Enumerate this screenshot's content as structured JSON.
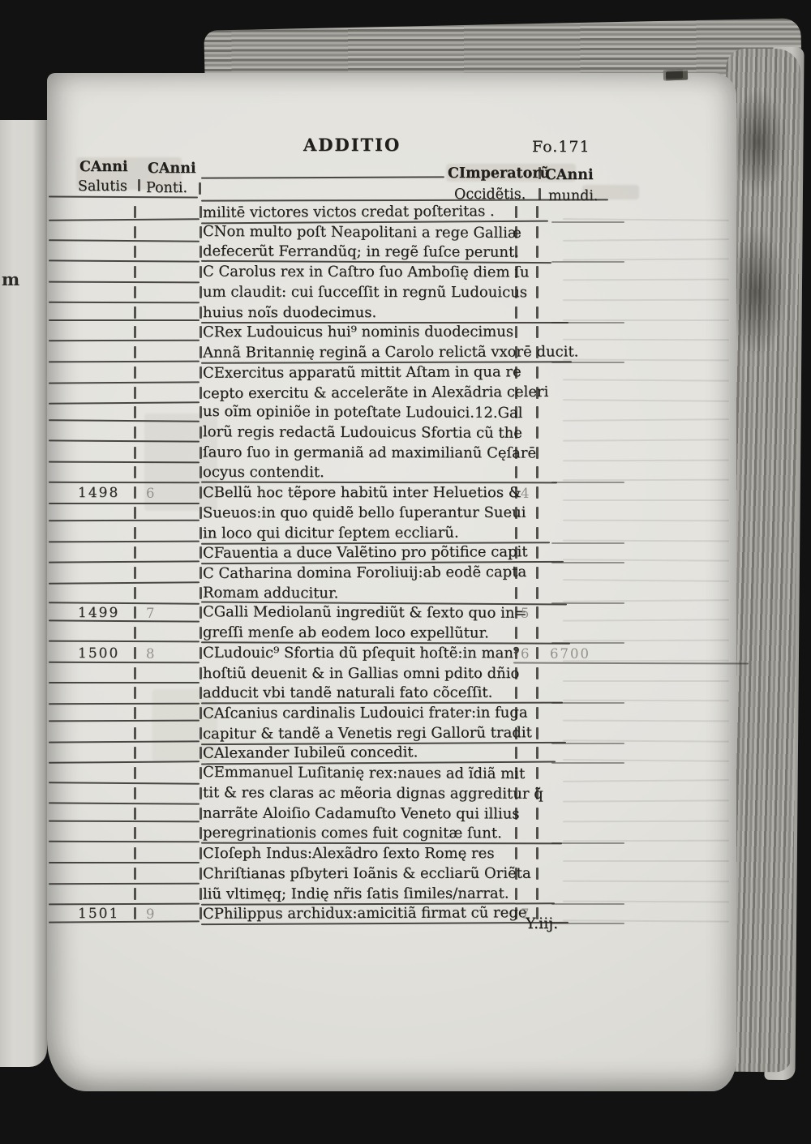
{
  "page": {
    "running_title": "ADDITIO",
    "folio": "Fo.171",
    "signature_mark": "Y.iij.",
    "marginal_letter": "m"
  },
  "table": {
    "headers": {
      "salutis_top": "CAnni",
      "salutis_bottom": "Salutis",
      "ponti_top": "CAnni",
      "ponti_bottom": "Ponti.",
      "imperator_top": "CImperatorũ",
      "imperator_bottom": "Occidẽtis.",
      "mundi_top": "CAnni",
      "mundi_bottom": "mundi."
    },
    "rows": [
      {
        "salutis": "",
        "ponti": "",
        "text": "militē victores victos credat poſteritas .",
        "imperator": "",
        "mundi": "",
        "para_end": true
      },
      {
        "salutis": "",
        "ponti": "",
        "text": "CNon multo poſt Neapolitani a rege Galliæ",
        "imperator": "",
        "mundi": "",
        "para_end": false
      },
      {
        "salutis": "",
        "ponti": "",
        "text": "defecerũt Ferrandũq; in regẽ ſuſce perunt.",
        "imperator": "",
        "mundi": "",
        "para_end": true
      },
      {
        "salutis": "",
        "ponti": "",
        "text": "C Carolus rex in Caſtro ſuo Amboſię diem ſu",
        "imperator": "",
        "mundi": "",
        "para_end": false
      },
      {
        "salutis": "",
        "ponti": "",
        "text": "um claudit: cui ſucceſſit in regnũ Ludouicus",
        "imperator": "",
        "mundi": "",
        "para_end": false
      },
      {
        "salutis": "",
        "ponti": "",
        "text": "huius noĩs duodecimus.",
        "imperator": "",
        "mundi": "",
        "para_end": true
      },
      {
        "salutis": "",
        "ponti": "",
        "text": "CRex Ludouicus hui⁹ nominis duodecimus",
        "imperator": "",
        "mundi": "",
        "para_end": false
      },
      {
        "salutis": "",
        "ponti": "",
        "text": "Annã Britannię reginã a Carolo relictã vxorē ducit.",
        "imperator": "",
        "mundi": "",
        "para_end": true
      },
      {
        "salutis": "",
        "ponti": "",
        "text": "CExercitus apparatũ mittit Aſtam in qua re",
        "imperator": "",
        "mundi": "",
        "para_end": false
      },
      {
        "salutis": "",
        "ponti": "",
        "text": "cepto exercitu & accelerãte in Alexãdria celeri",
        "imperator": "",
        "mundi": "",
        "para_end": false
      },
      {
        "salutis": "",
        "ponti": "",
        "text": "us oĩm opiniõe in poteſtate Ludouici.12.Gal",
        "imperator": "",
        "mundi": "",
        "para_end": false
      },
      {
        "salutis": "",
        "ponti": "",
        "text": "lorũ regis redactã Ludouicus Sfortia cũ the",
        "imperator": "",
        "mundi": "",
        "para_end": false
      },
      {
        "salutis": "",
        "ponti": "",
        "text": "ſauro ſuo in germaniã ad maximilianũ Cęſarē",
        "imperator": "",
        "mundi": "",
        "para_end": false
      },
      {
        "salutis": "",
        "ponti": "",
        "text": "ocyus contendit.",
        "imperator": "",
        "mundi": "",
        "para_end": true
      },
      {
        "salutis": "1498",
        "ponti": "6",
        "text": "CBellũ hoc tẽpore habitũ inter Heluetios &",
        "imperator": "4",
        "mundi": "",
        "para_end": false
      },
      {
        "salutis": "",
        "ponti": "",
        "text": "Sueuos:in quo quidẽ bello ſuperantur Sueui",
        "imperator": "",
        "mundi": "",
        "para_end": false
      },
      {
        "salutis": "",
        "ponti": "",
        "text": "in loco qui dicitur ſeptem eccliarũ.",
        "imperator": "",
        "mundi": "",
        "para_end": true
      },
      {
        "salutis": "",
        "ponti": "",
        "text": "CFauentia a duce Valẽtino pro põtifice capit",
        "imperator": "",
        "mundi": "",
        "para_end": true
      },
      {
        "salutis": "",
        "ponti": "",
        "text": "C Catharina domina Foroliuij:ab eodẽ capta",
        "imperator": "",
        "mundi": "",
        "para_end": false
      },
      {
        "salutis": "",
        "ponti": "",
        "text": "Romam adducitur.",
        "imperator": "",
        "mundi": "",
        "para_end": true
      },
      {
        "salutis": "1499",
        "ponti": "7",
        "text": "CGalli Mediolanũ ingrediũt & ſexto quo in=",
        "imperator": "5",
        "mundi": "",
        "para_end": false
      },
      {
        "salutis": "",
        "ponti": "",
        "text": "greſſi menſe ab eodem loco expellũtur.",
        "imperator": "",
        "mundi": "",
        "para_end": true
      },
      {
        "salutis": "1500",
        "ponti": "8",
        "text": "CLudouic⁹ Sfortia dũ pſequit hoſtẽ:in man⁹",
        "imperator": "6",
        "mundi": "6700",
        "para_end": false
      },
      {
        "salutis": "",
        "ponti": "",
        "text": "hoſtiũ deuenit & in Gallias omni pdito dñio",
        "imperator": "",
        "mundi": "",
        "para_end": false
      },
      {
        "salutis": "",
        "ponti": "",
        "text": "adducit vbi tandẽ naturali fato cõceſſit.",
        "imperator": "",
        "mundi": "",
        "para_end": true
      },
      {
        "salutis": "",
        "ponti": "",
        "text": "CAſcanius cardinalis Ludouici frater:in fuga",
        "imperator": "",
        "mundi": "",
        "para_end": false
      },
      {
        "salutis": "",
        "ponti": "",
        "text": "capitur & tandẽ a Venetis regi Gallorũ tradit",
        "imperator": "",
        "mundi": "",
        "para_end": true
      },
      {
        "salutis": "",
        "ponti": "",
        "text": "CAlexander Iubileũ concedit.",
        "imperator": "",
        "mundi": "",
        "para_end": true
      },
      {
        "salutis": "",
        "ponti": "",
        "text": "CEmmanuel Luſitanię rex:naues ad ĩdiã mit",
        "imperator": "",
        "mundi": "",
        "para_end": false
      },
      {
        "salutis": "",
        "ponti": "",
        "text": "tit & res claras ac mẽoria dignas aggreditur q̃",
        "imperator": "",
        "mundi": "",
        "para_end": false
      },
      {
        "salutis": "",
        "ponti": "",
        "text": "narrãte Aloiſio Cadamuſto Veneto qui illius",
        "imperator": "",
        "mundi": "",
        "para_end": false
      },
      {
        "salutis": "",
        "ponti": "",
        "text": "peregrinationis comes fuit cognitæ ſunt.",
        "imperator": "",
        "mundi": "",
        "para_end": true
      },
      {
        "salutis": "",
        "ponti": "",
        "text": "CIoſeph Indus:Alexãdro ſexto Romę res",
        "imperator": "",
        "mundi": "",
        "para_end": false
      },
      {
        "salutis": "",
        "ponti": "",
        "text": "Chriſtianas pſbyteri Ioãnis & eccliarũ Oriẽta",
        "imperator": "",
        "mundi": "",
        "para_end": false
      },
      {
        "salutis": "",
        "ponti": "",
        "text": "liũ vltimęq; Indię nr̃is ſatis ſimiles/narrat.",
        "imperator": "",
        "mundi": "",
        "para_end": true
      },
      {
        "salutis": "1501",
        "ponti": "9",
        "text": "CPhilippus archidux:amicitiã firmat cũ rege",
        "imperator": "7",
        "mundi": "",
        "para_end": true
      }
    ]
  }
}
